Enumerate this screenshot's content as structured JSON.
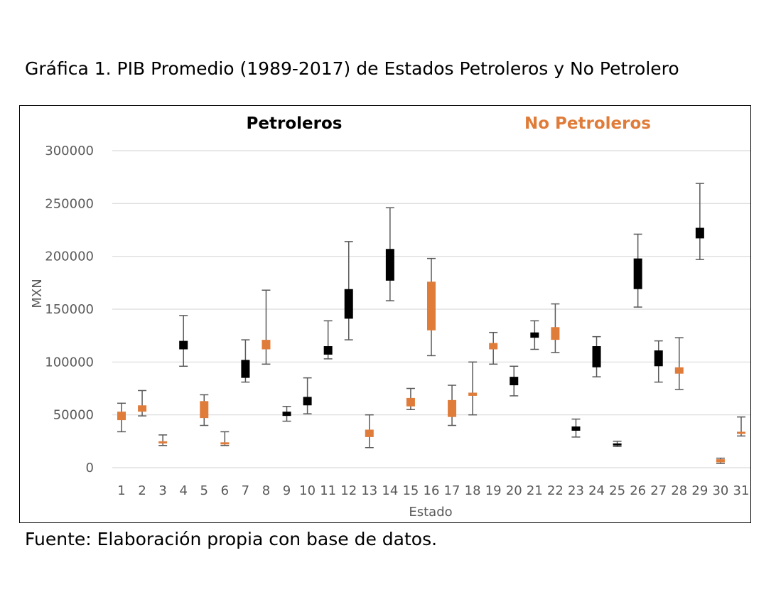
{
  "caption": "Gráfica 1. PIB Promedio (1989-2017) de Estados Petroleros y No Petrolero",
  "source": "Fuente: Elaboración propia con base de datos.",
  "colors": {
    "petroleros": "#000000",
    "no_petroleros": "#e07c3a",
    "whisker": "#595959",
    "grid": "#d9d9d9"
  },
  "chart_data": {
    "type": "box",
    "title": "",
    "xlabel": "Estado",
    "ylabel": "MXN",
    "ylim": [
      0,
      300000
    ],
    "yticks": [
      0,
      50000,
      100000,
      150000,
      200000,
      250000,
      300000
    ],
    "ytick_labels": [
      "0",
      "50000",
      "100000",
      "150000",
      "200000",
      "250000",
      "300000"
    ],
    "grid": true,
    "legend": [
      {
        "name": "Petroleros",
        "group": "petroleros",
        "color": "#000000"
      },
      {
        "name": "No Petroleros",
        "group": "no_petroleros",
        "color": "#e07c3a"
      }
    ],
    "categories": [
      "1",
      "2",
      "3",
      "4",
      "5",
      "6",
      "7",
      "8",
      "9",
      "10",
      "11",
      "12",
      "13",
      "14",
      "15",
      "16",
      "17",
      "18",
      "19",
      "20",
      "21",
      "22",
      "23",
      "24",
      "25",
      "26",
      "27",
      "28",
      "29",
      "30",
      "31"
    ],
    "boxes": [
      {
        "estado": "1",
        "group": "no_petroleros",
        "min": 34000,
        "q1": 45000,
        "q3": 53000,
        "max": 61000
      },
      {
        "estado": "2",
        "group": "no_petroleros",
        "min": 49000,
        "q1": 53000,
        "q3": 59000,
        "max": 73000
      },
      {
        "estado": "3",
        "group": "no_petroleros",
        "min": 21000,
        "q1": 23000,
        "q3": 25000,
        "max": 31000
      },
      {
        "estado": "4",
        "group": "petroleros",
        "min": 96000,
        "q1": 112000,
        "q3": 120000,
        "max": 144000
      },
      {
        "estado": "5",
        "group": "no_petroleros",
        "min": 40000,
        "q1": 47000,
        "q3": 63000,
        "max": 69000
      },
      {
        "estado": "6",
        "group": "no_petroleros",
        "min": 21000,
        "q1": 22000,
        "q3": 24000,
        "max": 34000
      },
      {
        "estado": "7",
        "group": "petroleros",
        "min": 81000,
        "q1": 85000,
        "q3": 102000,
        "max": 121000
      },
      {
        "estado": "8",
        "group": "no_petroleros",
        "min": 98000,
        "q1": 112000,
        "q3": 121000,
        "max": 168000
      },
      {
        "estado": "9",
        "group": "petroleros",
        "min": 44000,
        "q1": 49000,
        "q3": 53000,
        "max": 58000
      },
      {
        "estado": "10",
        "group": "petroleros",
        "min": 51000,
        "q1": 59000,
        "q3": 67000,
        "max": 85000
      },
      {
        "estado": "11",
        "group": "petroleros",
        "min": 103000,
        "q1": 107000,
        "q3": 115000,
        "max": 139000
      },
      {
        "estado": "12",
        "group": "petroleros",
        "min": 121000,
        "q1": 141000,
        "q3": 169000,
        "max": 214000
      },
      {
        "estado": "13",
        "group": "no_petroleros",
        "min": 19000,
        "q1": 29000,
        "q3": 36000,
        "max": 50000
      },
      {
        "estado": "14",
        "group": "petroleros",
        "min": 158000,
        "q1": 177000,
        "q3": 207000,
        "max": 246000
      },
      {
        "estado": "15",
        "group": "no_petroleros",
        "min": 55000,
        "q1": 58000,
        "q3": 66000,
        "max": 75000
      },
      {
        "estado": "16",
        "group": "no_petroleros",
        "min": 106000,
        "q1": 130000,
        "q3": 176000,
        "max": 198000
      },
      {
        "estado": "17",
        "group": "no_petroleros",
        "min": 40000,
        "q1": 48000,
        "q3": 64000,
        "max": 78000
      },
      {
        "estado": "18",
        "group": "no_petroleros",
        "min": 50000,
        "q1": 68000,
        "q3": 71000,
        "max": 100000
      },
      {
        "estado": "19",
        "group": "no_petroleros",
        "min": 98000,
        "q1": 112000,
        "q3": 118000,
        "max": 128000
      },
      {
        "estado": "20",
        "group": "petroleros",
        "min": 68000,
        "q1": 78000,
        "q3": 86000,
        "max": 96000
      },
      {
        "estado": "21",
        "group": "petroleros",
        "min": 112000,
        "q1": 123000,
        "q3": 128000,
        "max": 139000
      },
      {
        "estado": "22",
        "group": "no_petroleros",
        "min": 109000,
        "q1": 121000,
        "q3": 133000,
        "max": 155000
      },
      {
        "estado": "23",
        "group": "petroleros",
        "min": 29000,
        "q1": 35000,
        "q3": 39000,
        "max": 46000
      },
      {
        "estado": "24",
        "group": "petroleros",
        "min": 86000,
        "q1": 95000,
        "q3": 115000,
        "max": 124000
      },
      {
        "estado": "25",
        "group": "petroleros",
        "min": 20000,
        "q1": 21000,
        "q3": 23000,
        "max": 25000
      },
      {
        "estado": "26",
        "group": "petroleros",
        "min": 152000,
        "q1": 169000,
        "q3": 198000,
        "max": 221000
      },
      {
        "estado": "27",
        "group": "petroleros",
        "min": 81000,
        "q1": 96000,
        "q3": 111000,
        "max": 120000
      },
      {
        "estado": "28",
        "group": "no_petroleros",
        "min": 74000,
        "q1": 89000,
        "q3": 95000,
        "max": 123000
      },
      {
        "estado": "29",
        "group": "petroleros",
        "min": 197000,
        "q1": 217000,
        "q3": 227000,
        "max": 269000
      },
      {
        "estado": "30",
        "group": "no_petroleros",
        "min": 4000,
        "q1": 5000,
        "q3": 8000,
        "max": 9000
      },
      {
        "estado": "31",
        "group": "no_petroleros",
        "min": 30000,
        "q1": 32000,
        "q3": 34000,
        "max": 48000
      }
    ]
  }
}
